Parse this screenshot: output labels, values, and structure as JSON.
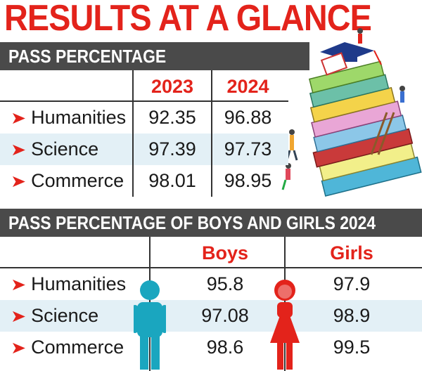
{
  "title": "RESULTS AT A GLANCE",
  "section1": {
    "heading": "PASS PERCENTAGE",
    "columns": [
      "2023",
      "2024"
    ],
    "rows": [
      {
        "label": "Humanities",
        "values": [
          "92.35",
          "96.88"
        ]
      },
      {
        "label": "Science",
        "values": [
          "97.39",
          "97.73"
        ]
      },
      {
        "label": "Commerce",
        "values": [
          "98.01",
          "98.95"
        ]
      }
    ]
  },
  "section2": {
    "heading": "PASS PERCENTAGE OF BOYS AND GIRLS 2024",
    "columns": [
      "Boys",
      "Girls"
    ],
    "rows": [
      {
        "label": "Humanities",
        "values": [
          "95.8",
          "97.9"
        ]
      },
      {
        "label": "Science",
        "values": [
          "97.08",
          "98.9"
        ]
      },
      {
        "label": "Commerce",
        "values": [
          "98.6",
          "99.5"
        ]
      }
    ]
  },
  "colors": {
    "accent_red": "#e3231b",
    "band_grey": "#4a4a4a",
    "row_tint": "#e3f0f6",
    "boy_teal": "#1aa6bf",
    "girl_red": "#e3231b"
  },
  "icons": [
    "arrow-bullet-icon",
    "boy-figure-icon",
    "girl-figure-icon",
    "books-stack-illustration"
  ],
  "chart_data": [
    {
      "type": "table",
      "title": "PASS PERCENTAGE",
      "categories": [
        "Humanities",
        "Science",
        "Commerce"
      ],
      "series": [
        {
          "name": "2023",
          "values": [
            92.35,
            97.39,
            98.01
          ]
        },
        {
          "name": "2024",
          "values": [
            96.88,
            97.73,
            98.95
          ]
        }
      ]
    },
    {
      "type": "table",
      "title": "PASS PERCENTAGE OF BOYS AND GIRLS 2024",
      "categories": [
        "Humanities",
        "Science",
        "Commerce"
      ],
      "series": [
        {
          "name": "Boys",
          "values": [
            95.8,
            97.08,
            98.6
          ]
        },
        {
          "name": "Girls",
          "values": [
            97.9,
            98.9,
            99.5
          ]
        }
      ]
    }
  ]
}
